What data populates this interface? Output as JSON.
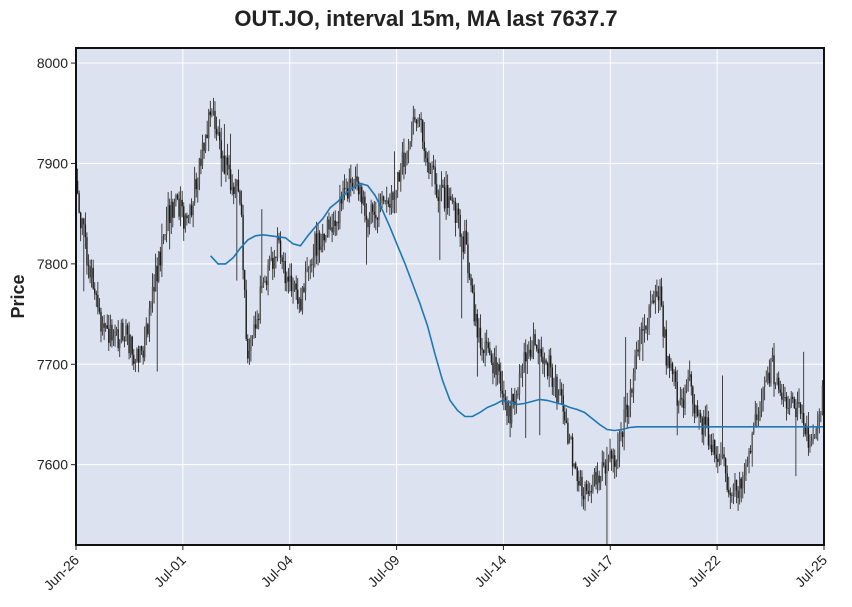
{
  "chart_data": {
    "type": "line",
    "chart_style": "ohlc-candlestick-with-moving-average",
    "title": "OUT.JO, interval 15m, MA last 7637.7",
    "xlabel": "",
    "ylabel": "Price",
    "ylim": [
      7520,
      8015
    ],
    "y_ticks": [
      7600,
      7700,
      7800,
      7900,
      8000
    ],
    "x_ticks": [
      "Jun-26",
      "Jul-01",
      "Jul-04",
      "Jul-09",
      "Jul-14",
      "Jul-17",
      "Jul-22",
      "Jul-25"
    ],
    "grid": true,
    "colors": {
      "background": "#dce2ef",
      "grid": "#ffffff",
      "candles": "#1a1a1a",
      "ma_line": "#1f77b4"
    },
    "series": [
      {
        "name": "Price",
        "kind": "candlestick",
        "x": [
          0,
          1,
          2,
          3,
          4,
          5,
          6,
          7,
          8,
          9,
          10,
          11,
          12,
          13,
          14,
          15,
          16,
          17,
          18,
          19,
          20,
          21,
          22,
          23,
          24,
          25,
          26,
          27,
          28,
          29,
          30,
          31,
          32,
          33,
          34,
          35,
          36,
          37,
          38,
          39,
          40,
          41,
          42,
          43,
          44,
          45,
          46,
          47,
          48,
          49,
          50,
          51,
          52,
          53,
          54,
          55,
          56,
          57,
          58,
          59,
          60,
          61,
          62,
          63,
          64,
          65,
          66,
          67,
          68,
          69,
          70,
          71,
          72,
          73,
          74,
          75,
          76,
          77,
          78,
          79,
          80,
          81,
          82,
          83,
          84,
          85,
          86,
          87,
          88,
          89,
          90,
          91,
          92,
          93,
          94,
          95,
          96,
          97,
          98,
          99,
          100
        ],
        "values": [
          7880,
          7830,
          7790,
          7750,
          7740,
          7720,
          7730,
          7725,
          7710,
          7715,
          7760,
          7800,
          7840,
          7860,
          7850,
          7840,
          7880,
          7920,
          7950,
          7920,
          7900,
          7880,
          7860,
          7700,
          7740,
          7780,
          7800,
          7820,
          7790,
          7770,
          7760,
          7800,
          7820,
          7830,
          7840,
          7850,
          7870,
          7880,
          7870,
          7850,
          7840,
          7860,
          7870,
          7880,
          7910,
          7940,
          7950,
          7900,
          7880,
          7870,
          7860,
          7840,
          7820,
          7760,
          7730,
          7710,
          7700,
          7680,
          7650,
          7680,
          7700,
          7720,
          7710,
          7700,
          7680,
          7660,
          7620,
          7590,
          7570,
          7580,
          7590,
          7600,
          7610,
          7640,
          7660,
          7710,
          7740,
          7760,
          7780,
          7700,
          7680,
          7660,
          7680,
          7650,
          7640,
          7620,
          7610,
          7590,
          7570,
          7580,
          7620,
          7640,
          7670,
          7700,
          7680,
          7660,
          7660,
          7640,
          7620,
          7640,
          7680
        ]
      },
      {
        "name": "MA",
        "kind": "line",
        "x": [
          18,
          19,
          20,
          21,
          22,
          23,
          24,
          25,
          26,
          27,
          28,
          29,
          30,
          31,
          32,
          33,
          34,
          35,
          36,
          37,
          38,
          39,
          40,
          41,
          42,
          43,
          44,
          45,
          46,
          47,
          48,
          49,
          50,
          51,
          52,
          53,
          54,
          55,
          56,
          57,
          58,
          59,
          60,
          61,
          62,
          63,
          64,
          65,
          66,
          67,
          68,
          69,
          70,
          71,
          72,
          73,
          74,
          75,
          76,
          77,
          78,
          79,
          80,
          81,
          82,
          83,
          84,
          85,
          86,
          87,
          88,
          89,
          90,
          91,
          92,
          93,
          94,
          95,
          96,
          97,
          98,
          99,
          100
        ],
        "values": [
          7808,
          7800,
          7800,
          7806,
          7816,
          7824,
          7828,
          7829,
          7828,
          7827,
          7826,
          7820,
          7818,
          7828,
          7837,
          7845,
          7856,
          7862,
          7870,
          7876,
          7880,
          7878,
          7868,
          7853,
          7836,
          7818,
          7800,
          7780,
          7760,
          7738,
          7710,
          7684,
          7664,
          7654,
          7648,
          7648,
          7652,
          7657,
          7660,
          7664,
          7662,
          7660,
          7661,
          7663,
          7665,
          7664,
          7662,
          7660,
          7657,
          7655,
          7652,
          7646,
          7640,
          7635,
          7634,
          7635,
          7637,
          7637.7,
          7637.7,
          7637.7,
          7637.7,
          7637.7,
          7637.7,
          7637.7,
          7637.7,
          7637.7,
          7637.7,
          7637.7,
          7637.7,
          7637.7,
          7637.7,
          7637.7,
          7637.7,
          7637.7,
          7637.7,
          7637.7,
          7637.7,
          7637.7,
          7637.7,
          7637.7,
          7637.7,
          7637.7,
          7637.7
        ]
      }
    ]
  }
}
